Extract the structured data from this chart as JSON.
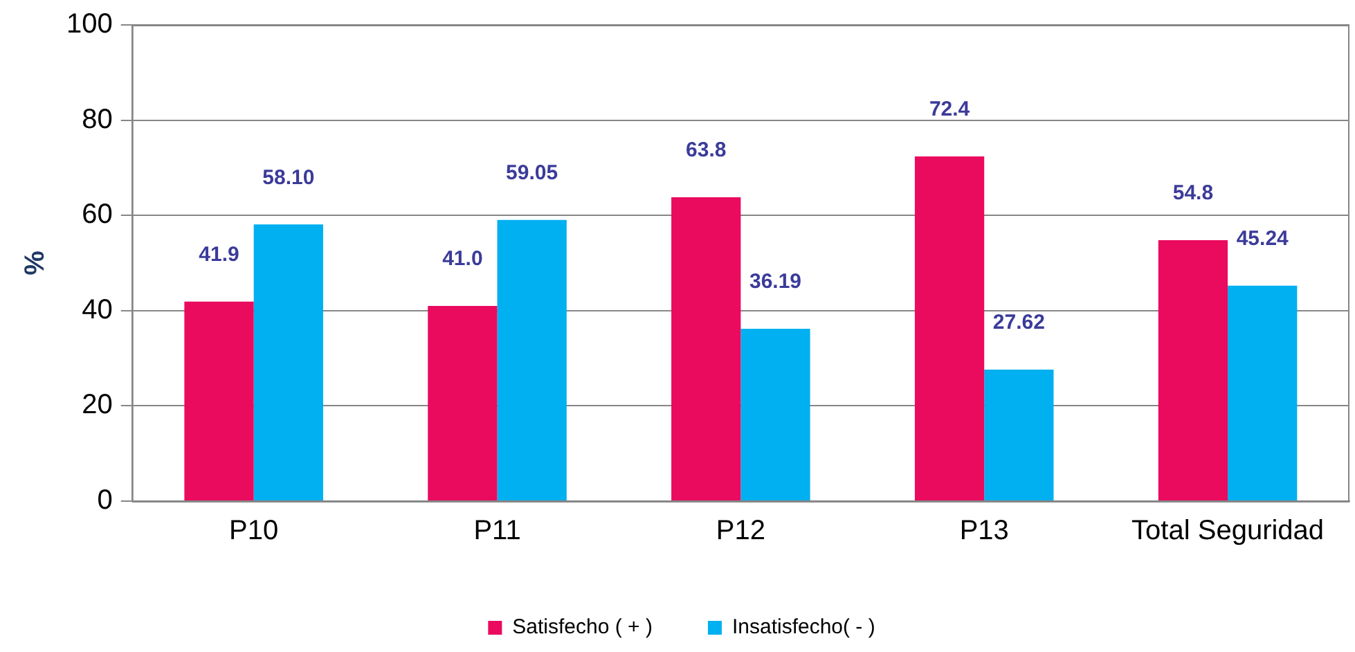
{
  "chart_data": {
    "type": "bar",
    "ylabel": "%",
    "categories": [
      "P10",
      "P11",
      "P12",
      "P13",
      "Total Seguridad"
    ],
    "series": [
      {
        "name": "Satisfecho ( + )",
        "color": "#ea0a5e",
        "values": [
          41.9,
          41.0,
          63.8,
          72.4,
          54.8
        ],
        "value_labels": [
          "41.9",
          "41.0",
          "63.8",
          "72.4",
          "54.8"
        ]
      },
      {
        "name": "Insatisfecho( - )",
        "color": "#00b0f0",
        "values": [
          58.1,
          59.05,
          36.19,
          27.62,
          45.24
        ],
        "value_labels": [
          "58.10",
          "59.05",
          "36.19",
          "27.62",
          "45.24"
        ]
      }
    ],
    "ylim": [
      0,
      100
    ],
    "yticks": [
      0,
      20,
      40,
      60,
      80,
      100
    ],
    "grid": "y",
    "legend": "bottom"
  }
}
